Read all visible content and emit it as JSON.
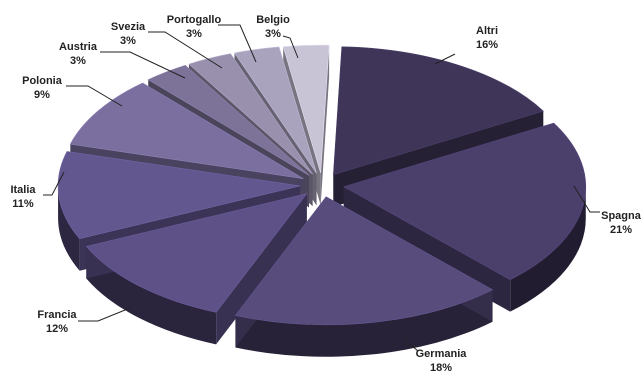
{
  "chart_data": {
    "type": "pie",
    "title": "",
    "slices": [
      {
        "name": "Altri",
        "value": 16,
        "label": "16%",
        "color": "#3f3559"
      },
      {
        "name": "Spagna",
        "value": 21,
        "label": "21%",
        "color": "#4b3f6c"
      },
      {
        "name": "Germania",
        "value": 18,
        "label": "18%",
        "color": "#584c7d"
      },
      {
        "name": "Francia",
        "value": 12,
        "label": "12%",
        "color": "#5e5188"
      },
      {
        "name": "Italia",
        "value": 11,
        "label": "11%",
        "color": "#635790"
      },
      {
        "name": "Polonia",
        "value": 9,
        "label": "9%",
        "color": "#7b6f9f"
      },
      {
        "name": "Austria",
        "value": 3,
        "label": "3%",
        "color": "#7d7399"
      },
      {
        "name": "Svezia",
        "value": 3,
        "label": "3%",
        "color": "#9990ae"
      },
      {
        "name": "Portogallo",
        "value": 3,
        "label": "3%",
        "color": "#aaa3be"
      },
      {
        "name": "Belgio",
        "value": 3,
        "label": "3%",
        "color": "#c9c3d6"
      }
    ],
    "exploded": true,
    "style": "3d"
  }
}
